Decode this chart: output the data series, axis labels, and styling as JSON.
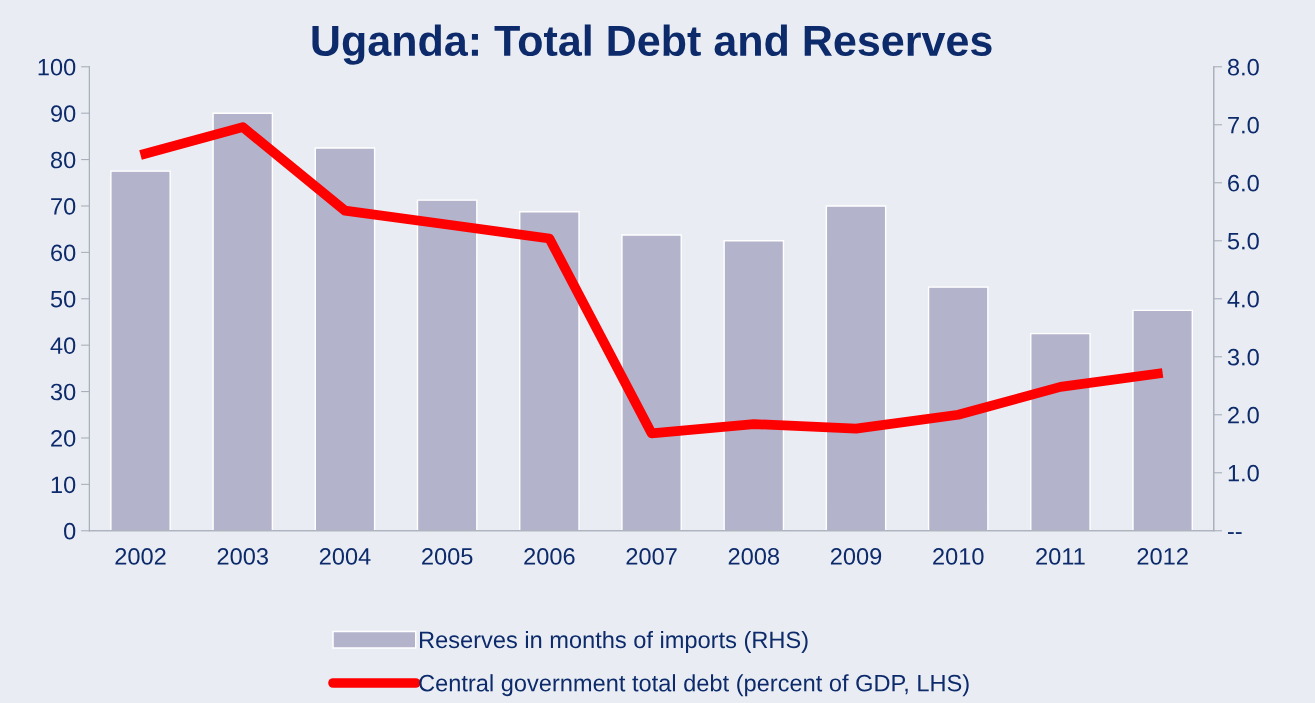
{
  "chart_data": {
    "type": "bar",
    "title": "Uganda: Total Debt and Reserves",
    "categories": [
      "2002",
      "2003",
      "2004",
      "2005",
      "2006",
      "2007",
      "2008",
      "2009",
      "2010",
      "2011",
      "2012"
    ],
    "series": [
      {
        "name": "Reserves in months of imports (RHS)",
        "axis": "y2",
        "color": "#b3b3cb",
        "values": [
          6.2,
          7.2,
          6.6,
          5.7,
          5.5,
          5.1,
          5.0,
          5.6,
          4.2,
          3.4,
          3.8
        ]
      },
      {
        "name": "Central government total debt (percent of GDP, LHS)",
        "type": "line",
        "color": "#ff0000",
        "values": [
          81,
          87,
          69,
          66,
          63,
          21,
          23,
          22,
          25,
          31,
          34
        ]
      }
    ],
    "ylim": [
      0,
      100
    ],
    "yticks": [
      0,
      10,
      20,
      30,
      40,
      50,
      60,
      70,
      80,
      90,
      100
    ],
    "y2lim": [
      0,
      8
    ],
    "y2ticks": [
      {
        "value": 0,
        "label": "--"
      },
      {
        "value": 1,
        "label": "1.0"
      },
      {
        "value": 2,
        "label": "2.0"
      },
      {
        "value": 3,
        "label": "3.0"
      },
      {
        "value": 4,
        "label": "4.0"
      },
      {
        "value": 5,
        "label": "5.0"
      },
      {
        "value": 6,
        "label": "6.0"
      },
      {
        "value": 7,
        "label": "7.0"
      },
      {
        "value": 8,
        "label": "8.0"
      }
    ],
    "grid": false,
    "legend": "bottom",
    "marker": "none",
    "line_style": "solid"
  }
}
